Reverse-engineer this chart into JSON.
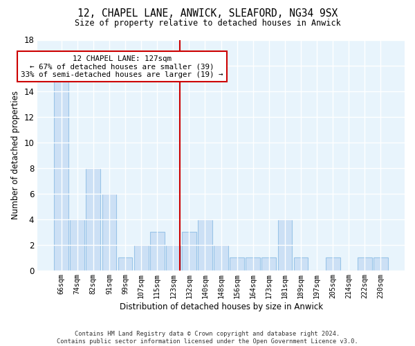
{
  "title": "12, CHAPEL LANE, ANWICK, SLEAFORD, NG34 9SX",
  "subtitle": "Size of property relative to detached houses in Anwick",
  "xlabel": "Distribution of detached houses by size in Anwick",
  "ylabel": "Number of detached properties",
  "bar_color": "#cce0f5",
  "bar_edge_color": "#99c4e8",
  "background_color": "#e8f4fc",
  "grid_color": "white",
  "categories": [
    "66sqm",
    "74sqm",
    "82sqm",
    "91sqm",
    "99sqm",
    "107sqm",
    "115sqm",
    "123sqm",
    "132sqm",
    "140sqm",
    "148sqm",
    "156sqm",
    "164sqm",
    "173sqm",
    "181sqm",
    "189sqm",
    "197sqm",
    "205sqm",
    "214sqm",
    "222sqm",
    "230sqm"
  ],
  "values": [
    15,
    4,
    8,
    6,
    1,
    2,
    3,
    2,
    3,
    4,
    2,
    1,
    1,
    1,
    4,
    1,
    0,
    1,
    0,
    1,
    1
  ],
  "ylim": [
    0,
    18
  ],
  "yticks": [
    0,
    2,
    4,
    6,
    8,
    10,
    12,
    14,
    16,
    18
  ],
  "property_label": "12 CHAPEL LANE: 127sqm",
  "annotation_line1": "← 67% of detached houses are smaller (39)",
  "annotation_line2": "33% of semi-detached houses are larger (19) →",
  "vline_color": "#cc0000",
  "annotation_box_edge": "#cc0000",
  "footer_line1": "Contains HM Land Registry data © Crown copyright and database right 2024.",
  "footer_line2": "Contains public sector information licensed under the Open Government Licence v3.0.",
  "vline_x_index": 7.44
}
